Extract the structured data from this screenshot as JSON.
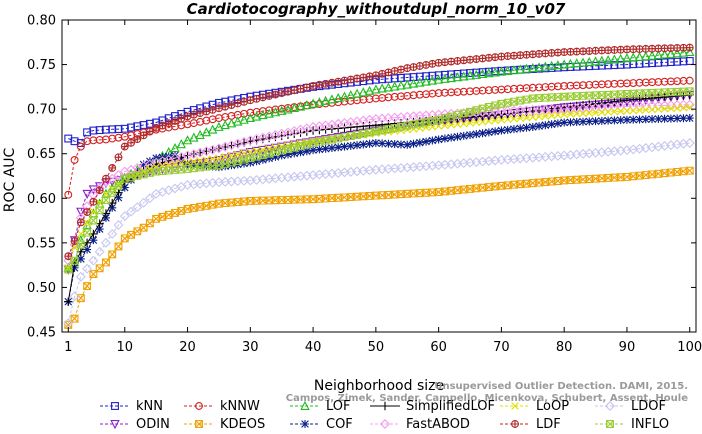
{
  "chart_data": {
    "type": "line",
    "title": "Cardiotocography_withoutdupl_norm_10_v07",
    "xlabel": "Neighborhood size",
    "ylabel": "ROC AUC",
    "xlim": [
      0,
      101
    ],
    "ylim": [
      0.45,
      0.8
    ],
    "xticks": [
      1,
      10,
      20,
      30,
      40,
      50,
      60,
      70,
      80,
      90,
      100
    ],
    "yticks": [
      0.45,
      0.5,
      0.55,
      0.6,
      0.65,
      0.7,
      0.75,
      0.8
    ],
    "grid": false,
    "legend_position": "bottom",
    "series": [
      {
        "name": "kNN",
        "color": "#1f1fcc",
        "marker": "square",
        "dash": true,
        "points": [
          [
            1,
            0.667
          ],
          [
            2,
            0.664
          ],
          [
            3,
            0.662
          ],
          [
            4,
            0.674
          ],
          [
            5,
            0.676
          ],
          [
            7,
            0.677
          ],
          [
            10,
            0.678
          ],
          [
            15,
            0.685
          ],
          [
            20,
            0.697
          ],
          [
            25,
            0.707
          ],
          [
            30,
            0.714
          ],
          [
            40,
            0.725
          ],
          [
            50,
            0.733
          ],
          [
            60,
            0.738
          ],
          [
            70,
            0.743
          ],
          [
            80,
            0.747
          ],
          [
            90,
            0.75
          ],
          [
            100,
            0.754
          ]
        ]
      },
      {
        "name": "ODIN",
        "color": "#8a1fcc",
        "marker": "tri_down",
        "dash": true,
        "points": [
          [
            1,
            0.52
          ],
          [
            2,
            0.553
          ],
          [
            3,
            0.585
          ],
          [
            4,
            0.605
          ],
          [
            5,
            0.61
          ],
          [
            7,
            0.617
          ],
          [
            10,
            0.622
          ],
          [
            15,
            0.632
          ],
          [
            20,
            0.637
          ],
          [
            25,
            0.643
          ],
          [
            30,
            0.652
          ],
          [
            40,
            0.664
          ],
          [
            50,
            0.676
          ],
          [
            60,
            0.686
          ],
          [
            70,
            0.694
          ],
          [
            80,
            0.702
          ],
          [
            90,
            0.708
          ],
          [
            100,
            0.716
          ]
        ]
      },
      {
        "name": "kNNW",
        "color": "#d62020",
        "marker": "circle",
        "dash": true,
        "points": [
          [
            1,
            0.604
          ],
          [
            2,
            0.643
          ],
          [
            3,
            0.658
          ],
          [
            4,
            0.664
          ],
          [
            5,
            0.665
          ],
          [
            7,
            0.666
          ],
          [
            10,
            0.669
          ],
          [
            15,
            0.677
          ],
          [
            20,
            0.683
          ],
          [
            25,
            0.69
          ],
          [
            30,
            0.696
          ],
          [
            40,
            0.705
          ],
          [
            50,
            0.712
          ],
          [
            60,
            0.718
          ],
          [
            70,
            0.722
          ],
          [
            80,
            0.726
          ],
          [
            90,
            0.729
          ],
          [
            100,
            0.732
          ]
        ]
      },
      {
        "name": "KDEOS",
        "color": "#f0a000",
        "marker": "square_x",
        "dash": true,
        "points": [
          [
            1,
            0.458
          ],
          [
            2,
            0.465
          ],
          [
            3,
            0.488
          ],
          [
            5,
            0.515
          ],
          [
            7,
            0.528
          ],
          [
            10,
            0.555
          ],
          [
            13,
            0.567
          ],
          [
            15,
            0.577
          ],
          [
            20,
            0.588
          ],
          [
            25,
            0.594
          ],
          [
            30,
            0.597
          ],
          [
            40,
            0.599
          ],
          [
            50,
            0.603
          ],
          [
            60,
            0.607
          ],
          [
            70,
            0.614
          ],
          [
            80,
            0.62
          ],
          [
            90,
            0.624
          ],
          [
            100,
            0.631
          ]
        ]
      },
      {
        "name": "LOF",
        "color": "#22bb22",
        "marker": "triangle",
        "dash": true,
        "points": [
          [
            1,
            0.522
          ],
          [
            2,
            0.528
          ],
          [
            3,
            0.553
          ],
          [
            4,
            0.57
          ],
          [
            5,
            0.583
          ],
          [
            7,
            0.605
          ],
          [
            10,
            0.623
          ],
          [
            13,
            0.636
          ],
          [
            15,
            0.643
          ],
          [
            20,
            0.665
          ],
          [
            25,
            0.68
          ],
          [
            30,
            0.69
          ],
          [
            40,
            0.706
          ],
          [
            50,
            0.722
          ],
          [
            60,
            0.733
          ],
          [
            70,
            0.742
          ],
          [
            80,
            0.75
          ],
          [
            90,
            0.757
          ],
          [
            100,
            0.764
          ]
        ]
      },
      {
        "name": "COF",
        "color": "#0a1f88",
        "marker": "star",
        "dash": true,
        "points": [
          [
            1,
            0.484
          ],
          [
            2,
            0.522
          ],
          [
            3,
            0.532
          ],
          [
            5,
            0.553
          ],
          [
            7,
            0.578
          ],
          [
            10,
            0.612
          ],
          [
            13,
            0.638
          ],
          [
            15,
            0.645
          ],
          [
            18,
            0.648
          ],
          [
            20,
            0.638
          ],
          [
            25,
            0.635
          ],
          [
            30,
            0.64
          ],
          [
            35,
            0.648
          ],
          [
            40,
            0.654
          ],
          [
            45,
            0.658
          ],
          [
            50,
            0.662
          ],
          [
            55,
            0.66
          ],
          [
            60,
            0.666
          ],
          [
            65,
            0.671
          ],
          [
            70,
            0.676
          ],
          [
            75,
            0.68
          ],
          [
            80,
            0.685
          ],
          [
            90,
            0.688
          ],
          [
            100,
            0.69
          ]
        ]
      },
      {
        "name": "SimplifiedLOF",
        "color": "#000000",
        "marker": "plus",
        "dash": false,
        "points": [
          [
            1,
            0.484
          ],
          [
            2,
            0.527
          ],
          [
            3,
            0.54
          ],
          [
            5,
            0.56
          ],
          [
            7,
            0.583
          ],
          [
            10,
            0.618
          ],
          [
            13,
            0.632
          ],
          [
            15,
            0.638
          ],
          [
            20,
            0.648
          ],
          [
            25,
            0.656
          ],
          [
            30,
            0.664
          ],
          [
            40,
            0.676
          ],
          [
            50,
            0.682
          ],
          [
            60,
            0.688
          ],
          [
            70,
            0.694
          ],
          [
            80,
            0.702
          ],
          [
            90,
            0.71
          ],
          [
            100,
            0.716
          ]
        ]
      },
      {
        "name": "FastABOD",
        "color": "#f59cf0",
        "marker": "diamond",
        "dash": true,
        "points": [
          [
            1,
            0.53
          ],
          [
            2,
            0.548
          ],
          [
            3,
            0.578
          ],
          [
            5,
            0.604
          ],
          [
            7,
            0.618
          ],
          [
            10,
            0.63
          ],
          [
            15,
            0.64
          ],
          [
            20,
            0.648
          ],
          [
            25,
            0.656
          ],
          [
            30,
            0.665
          ],
          [
            40,
            0.68
          ],
          [
            50,
            0.689
          ],
          [
            60,
            0.694
          ],
          [
            70,
            0.698
          ],
          [
            80,
            0.7
          ],
          [
            90,
            0.703
          ],
          [
            100,
            0.705
          ]
        ]
      },
      {
        "name": "LoOP",
        "color": "#e0e000",
        "marker": "x",
        "dash": true,
        "points": [
          [
            1,
            0.522
          ],
          [
            2,
            0.545
          ],
          [
            3,
            0.56
          ],
          [
            5,
            0.585
          ],
          [
            7,
            0.605
          ],
          [
            10,
            0.622
          ],
          [
            15,
            0.635
          ],
          [
            20,
            0.64
          ],
          [
            25,
            0.645
          ],
          [
            30,
            0.652
          ],
          [
            40,
            0.664
          ],
          [
            50,
            0.673
          ],
          [
            60,
            0.681
          ],
          [
            70,
            0.688
          ],
          [
            80,
            0.694
          ],
          [
            90,
            0.698
          ],
          [
            100,
            0.702
          ]
        ]
      },
      {
        "name": "LDF",
        "color": "#b02a2a",
        "marker": "circle_plus",
        "dash": true,
        "points": [
          [
            1,
            0.535
          ],
          [
            2,
            0.552
          ],
          [
            3,
            0.573
          ],
          [
            5,
            0.596
          ],
          [
            7,
            0.622
          ],
          [
            10,
            0.658
          ],
          [
            15,
            0.679
          ],
          [
            20,
            0.692
          ],
          [
            25,
            0.701
          ],
          [
            30,
            0.71
          ],
          [
            40,
            0.726
          ],
          [
            50,
            0.738
          ],
          [
            55,
            0.746
          ],
          [
            60,
            0.752
          ],
          [
            70,
            0.759
          ],
          [
            80,
            0.764
          ],
          [
            90,
            0.767
          ],
          [
            100,
            0.769
          ]
        ]
      },
      {
        "name": "LDOF",
        "color": "#c6c6f0",
        "marker": "diamond",
        "dash": true,
        "points": [
          [
            1,
            0.46
          ],
          [
            2,
            0.49
          ],
          [
            3,
            0.512
          ],
          [
            5,
            0.53
          ],
          [
            7,
            0.55
          ],
          [
            10,
            0.58
          ],
          [
            15,
            0.605
          ],
          [
            20,
            0.615
          ],
          [
            25,
            0.618
          ],
          [
            30,
            0.62
          ],
          [
            40,
            0.626
          ],
          [
            50,
            0.632
          ],
          [
            60,
            0.637
          ],
          [
            70,
            0.643
          ],
          [
            80,
            0.648
          ],
          [
            90,
            0.654
          ],
          [
            100,
            0.662
          ]
        ]
      },
      {
        "name": "INFLO",
        "color": "#99cc33",
        "marker": "square_x",
        "dash": true,
        "points": [
          [
            1,
            0.52
          ],
          [
            2,
            0.53
          ],
          [
            3,
            0.548
          ],
          [
            5,
            0.575
          ],
          [
            7,
            0.598
          ],
          [
            10,
            0.622
          ],
          [
            15,
            0.63
          ],
          [
            20,
            0.633
          ],
          [
            25,
            0.637
          ],
          [
            30,
            0.645
          ],
          [
            40,
            0.662
          ],
          [
            50,
            0.675
          ],
          [
            60,
            0.688
          ],
          [
            65,
            0.697
          ],
          [
            70,
            0.706
          ],
          [
            75,
            0.712
          ],
          [
            80,
            0.714
          ],
          [
            90,
            0.717
          ],
          [
            100,
            0.72
          ]
        ]
      }
    ]
  },
  "watermark": {
    "line1": "Unsupervised Outlier Detection. DAMI, 2015.",
    "line2": "Campos, Zimek, Sander, Campello, Micenkova, Schubert, Assent, Houle"
  }
}
